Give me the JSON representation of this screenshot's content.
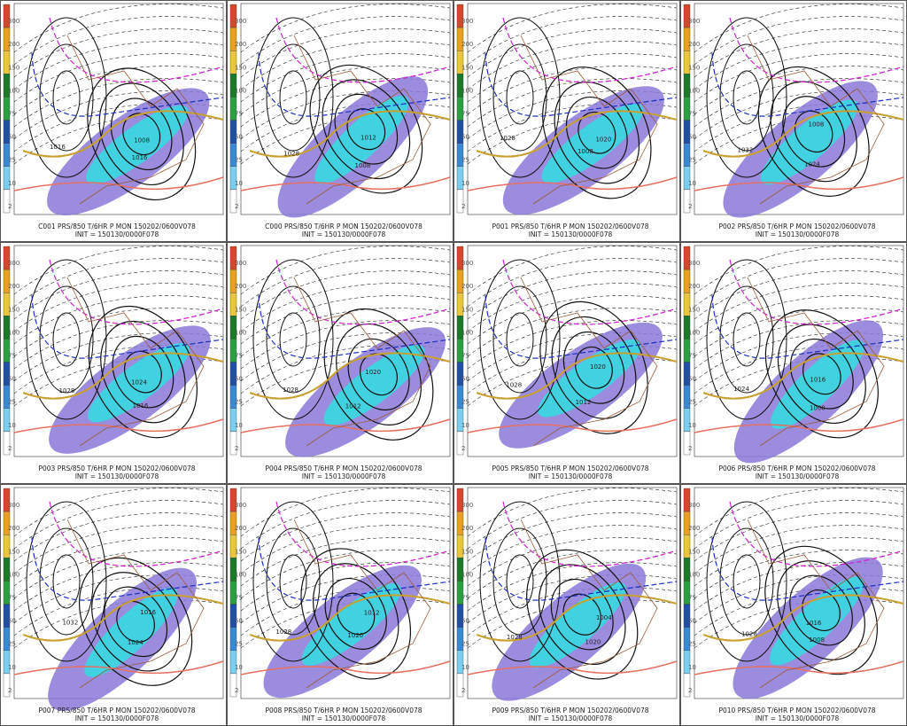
{
  "colorbar": [
    "300",
    "200",
    "150",
    "100",
    "75",
    "50",
    "25",
    "10",
    "2"
  ],
  "panels": [
    {
      "caption": "C001 PRS/850 T/6HR P MON 150202/0600V078",
      "init": "INIT = 150130/0000F078",
      "labels": [
        "1016",
        "1008",
        "1016"
      ]
    },
    {
      "caption": "C000 PRS/850 T/6HR P MON 150202/0600V078",
      "init": "INIT = 150130/0000F078",
      "labels": [
        "1028",
        "1012",
        "1008"
      ]
    },
    {
      "caption": "P001 PRS/850 T/6HR P MON 150202/0600V078",
      "init": "INIT = 150130/0000F078",
      "labels": [
        "1028",
        "1020",
        "1008"
      ]
    },
    {
      "caption": "P002 PRS/850 T/6HR P MON 150202/0600V078",
      "init": "INIT = 150130/0000F078",
      "labels": [
        "1032",
        "1008",
        "1024"
      ]
    },
    {
      "caption": "P003 PRS/850 T/6HR P MON 150202/0600V078",
      "init": "INIT = 150130/0000F078",
      "labels": [
        "1028",
        "1024",
        "1016"
      ]
    },
    {
      "caption": "P004 PRS/850 T/6HR P MON 150202/0600V078",
      "init": "INIT = 150130/0000F078",
      "labels": [
        "1028",
        "1020",
        "1012"
      ]
    },
    {
      "caption": "P005 PRS/850 T/6HR P MON 150202/0600V078",
      "init": "INIT = 150130/0000F078",
      "labels": [
        "1028",
        "1020",
        "1012"
      ]
    },
    {
      "caption": "P006 PRS/850 T/6HR P MON 150202/0600V078",
      "init": "INIT = 150130/0000F078",
      "labels": [
        "1024",
        "1016",
        "1008"
      ]
    },
    {
      "caption": "P007 PRS/850 T/6HR P MON 150202/0600V078",
      "init": "INIT = 150130/0000F078",
      "labels": [
        "1032",
        "1016",
        "1024"
      ]
    },
    {
      "caption": "P008 PRS/850 T/6HR P MON 150202/0600V078",
      "init": "INIT = 150130/0000F078",
      "labels": [
        "1028",
        "1012",
        "1020"
      ]
    },
    {
      "caption": "P009 PRS/850 T/6HR P MON 150202/0600V078",
      "init": "INIT = 150130/0000F078",
      "labels": [
        "1028",
        "1004",
        "1020"
      ]
    },
    {
      "caption": "P010 PRS/850 T/6HR P MON 150202/0600V078",
      "init": "INIT = 150130/0000F078",
      "labels": [
        "1028",
        "1016",
        "1008"
      ]
    }
  ]
}
